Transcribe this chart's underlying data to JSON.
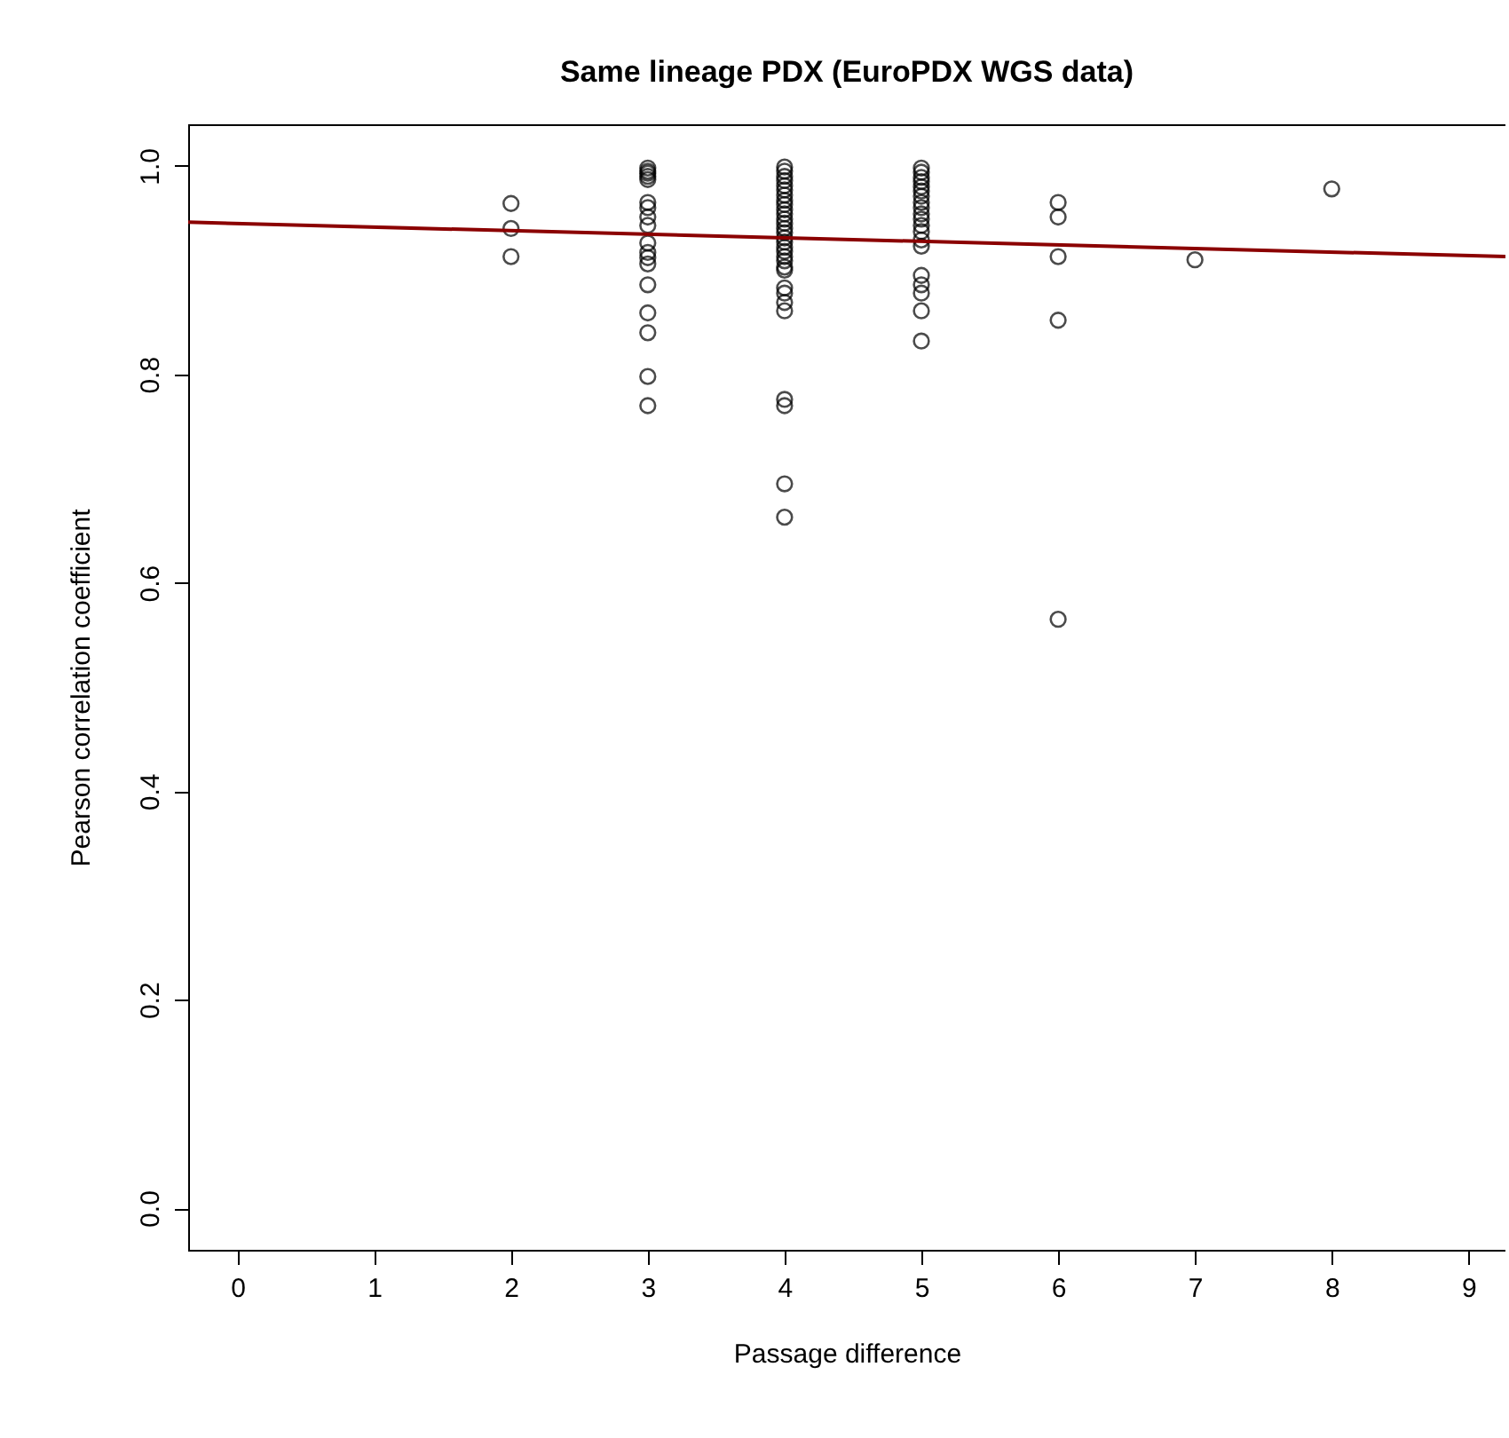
{
  "chart_data": {
    "type": "scatter",
    "title": "Same lineage PDX (EuroPDX WGS data)",
    "xlabel": "Passage difference",
    "ylabel": "Pearson correlation coefficient",
    "xlim": [
      -0.36,
      9.27
    ],
    "ylim": [
      -0.04,
      1.04
    ],
    "xticks": [
      0,
      1,
      2,
      3,
      4,
      5,
      6,
      7,
      8,
      9
    ],
    "yticks": [
      {
        "value": 0,
        "label": "0.0"
      },
      0.2,
      0.4,
      0.6,
      0.8,
      {
        "value": 1,
        "label": "1.0"
      }
    ],
    "grid": false,
    "series": [
      {
        "marker": "circle",
        "color": "#000000",
        "x": [
          2,
          2,
          2,
          3,
          3,
          3,
          3,
          3,
          3,
          3,
          3,
          3,
          3,
          3,
          3,
          3,
          3,
          3,
          3,
          3,
          3,
          4,
          4,
          4,
          4,
          4,
          4,
          4,
          4,
          4,
          4,
          4,
          4,
          4,
          4,
          4,
          4,
          4,
          4,
          4,
          4,
          4,
          4,
          4,
          4,
          4,
          4,
          4,
          4,
          4,
          4,
          4,
          5,
          5,
          5,
          5,
          5,
          5,
          5,
          5,
          5,
          5,
          5,
          5,
          5,
          5,
          5,
          5,
          5,
          5,
          5,
          5,
          6,
          6,
          6,
          6,
          6,
          7,
          8
        ],
        "values": [
          0.964,
          0.94,
          0.913,
          0.998,
          0.995,
          0.993,
          0.99,
          0.987,
          0.965,
          0.96,
          0.951,
          0.943,
          0.926,
          0.917,
          0.912,
          0.906,
          0.886,
          0.859,
          0.84,
          0.798,
          0.77,
          0.999,
          0.995,
          0.99,
          0.986,
          0.981,
          0.977,
          0.972,
          0.967,
          0.963,
          0.958,
          0.954,
          0.949,
          0.945,
          0.94,
          0.936,
          0.931,
          0.927,
          0.922,
          0.918,
          0.913,
          0.909,
          0.903,
          0.9,
          0.883,
          0.878,
          0.869,
          0.861,
          0.776,
          0.77,
          0.695,
          0.663,
          0.998,
          0.994,
          0.989,
          0.985,
          0.98,
          0.976,
          0.971,
          0.965,
          0.96,
          0.954,
          0.949,
          0.943,
          0.937,
          0.929,
          0.923,
          0.895,
          0.886,
          0.878,
          0.861,
          0.832,
          0.965,
          0.951,
          0.913,
          0.852,
          0.565,
          0.91,
          0.978
        ]
      },
      {
        "type": "line",
        "marker": "none",
        "color": "#8b0000",
        "line_style": "solid",
        "x": [
          -0.36,
          9.27
        ],
        "values": [
          0.946,
          0.913
        ]
      }
    ]
  }
}
